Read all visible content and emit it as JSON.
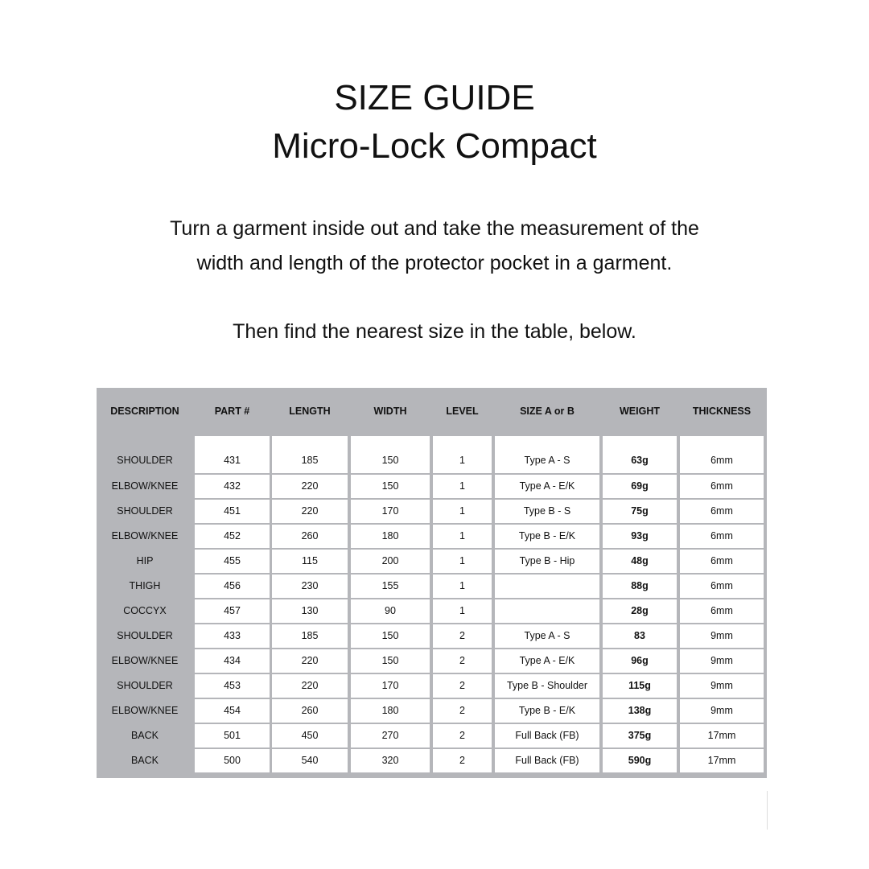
{
  "title": "SIZE GUIDE",
  "subtitle": "Micro-Lock Compact",
  "instructions": [
    "Turn a garment inside out and take the measurement of the",
    "width and length of the protector pocket in a garment."
  ],
  "note": "Then find the nearest size in the table, below.",
  "table": {
    "headers": [
      "DESCRIPTION",
      "PART #",
      "LENGTH",
      "WIDTH",
      "LEVEL",
      "SIZE A or B",
      "WEIGHT",
      "THICKNESS"
    ],
    "rows": [
      [
        "SHOULDER",
        "431",
        "185",
        "150",
        "1",
        "Type A - S",
        "63g",
        "6mm"
      ],
      [
        "ELBOW/KNEE",
        "432",
        "220",
        "150",
        "1",
        "Type A - E/K",
        "69g",
        "6mm"
      ],
      [
        "SHOULDER",
        "451",
        "220",
        "170",
        "1",
        "Type B - S",
        "75g",
        "6mm"
      ],
      [
        "ELBOW/KNEE",
        "452",
        "260",
        "180",
        "1",
        "Type B - E/K",
        "93g",
        "6mm"
      ],
      [
        "HIP",
        "455",
        "115",
        "200",
        "1",
        "Type B - Hip",
        "48g",
        "6mm"
      ],
      [
        "THIGH",
        "456",
        "230",
        "155",
        "1",
        "",
        "88g",
        "6mm"
      ],
      [
        "COCCYX",
        "457",
        "130",
        "90",
        "1",
        "",
        "28g",
        "6mm"
      ],
      [
        "SHOULDER",
        "433",
        "185",
        "150",
        "2",
        "Type A - S",
        "83",
        "9mm"
      ],
      [
        "ELBOW/KNEE",
        "434",
        "220",
        "150",
        "2",
        "Type A - E/K",
        "96g",
        "9mm"
      ],
      [
        "SHOULDER",
        "453",
        "220",
        "170",
        "2",
        "Type B - Shoulder",
        "115g",
        "9mm"
      ],
      [
        "ELBOW/KNEE",
        "454",
        "260",
        "180",
        "2",
        "Type B - E/K",
        "138g",
        "9mm"
      ],
      [
        "BACK",
        "501",
        "450",
        "270",
        "2",
        "Full Back (FB)",
        "375g",
        "17mm"
      ],
      [
        "BACK",
        "500",
        "540",
        "320",
        "2",
        "Full Back (FB)",
        "590g",
        "17mm"
      ]
    ]
  },
  "colors": {
    "table_bg": "#b5b6ba",
    "cell_bg": "#ffffff"
  }
}
